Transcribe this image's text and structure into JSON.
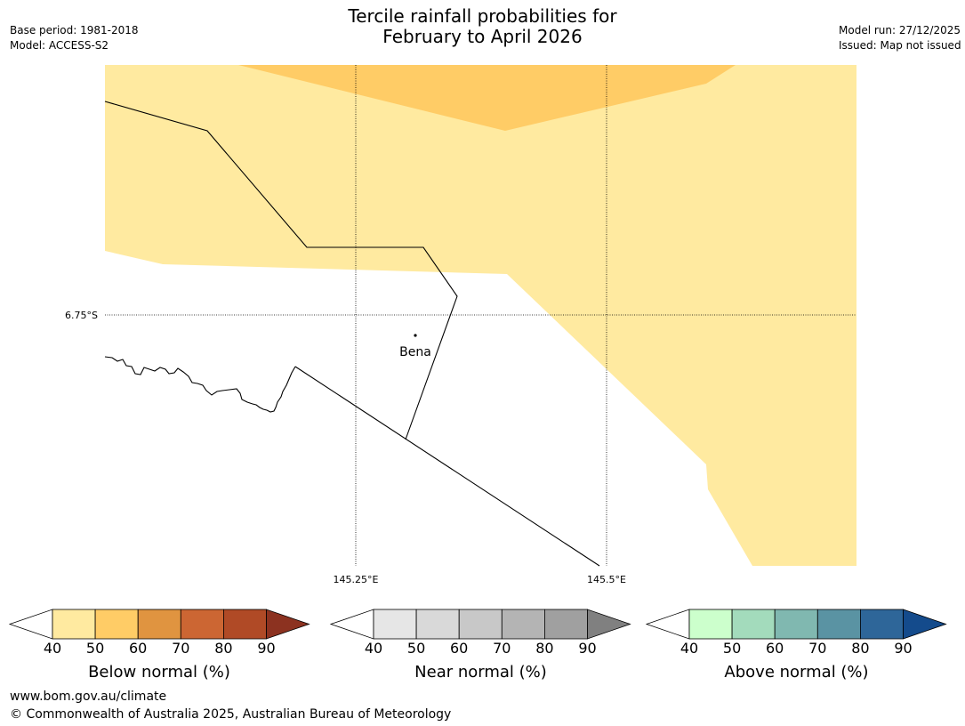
{
  "header": {
    "title_line1": "Tercile rainfall probabilities for",
    "title_line2": "February to April 2026",
    "base_period": "Base period: 1981-2018",
    "model": "Model: ACCESS-S2",
    "model_run": "Model run: 27/12/2025",
    "issued": "Issued: Map not issued"
  },
  "map": {
    "lat_label": "6.75°S",
    "lon_labels": [
      "145.25°E",
      "145.5°E"
    ],
    "place": "Bena",
    "colors": {
      "below_40_50": "#ffeaa0",
      "below_50_60": "#ffcc66",
      "boundary": "#000000"
    }
  },
  "colorbars": [
    {
      "label": "Below normal (%)",
      "ticks": [
        "40",
        "50",
        "60",
        "70",
        "80",
        "90"
      ],
      "colors": [
        "#ffeaa0",
        "#ffcc66",
        "#e09440",
        "#cc6633",
        "#b04a26",
        "#8c3220"
      ]
    },
    {
      "label": "Near normal (%)",
      "ticks": [
        "40",
        "50",
        "60",
        "70",
        "80",
        "90"
      ],
      "colors": [
        "#e6e6e6",
        "#d9d9d9",
        "#c8c8c8",
        "#b4b4b4",
        "#a0a0a0",
        "#808080"
      ]
    },
    {
      "label": "Above normal (%)",
      "ticks": [
        "40",
        "50",
        "60",
        "70",
        "80",
        "90"
      ],
      "colors": [
        "#ccffcc",
        "#a3dbbc",
        "#80b8b0",
        "#5a93a3",
        "#2e6699",
        "#144b8c"
      ]
    }
  ],
  "footer": {
    "url": "www.bom.gov.au/climate",
    "copyright": "© Commonwealth of Australia 2025, Australian Bureau of Meteorology"
  }
}
